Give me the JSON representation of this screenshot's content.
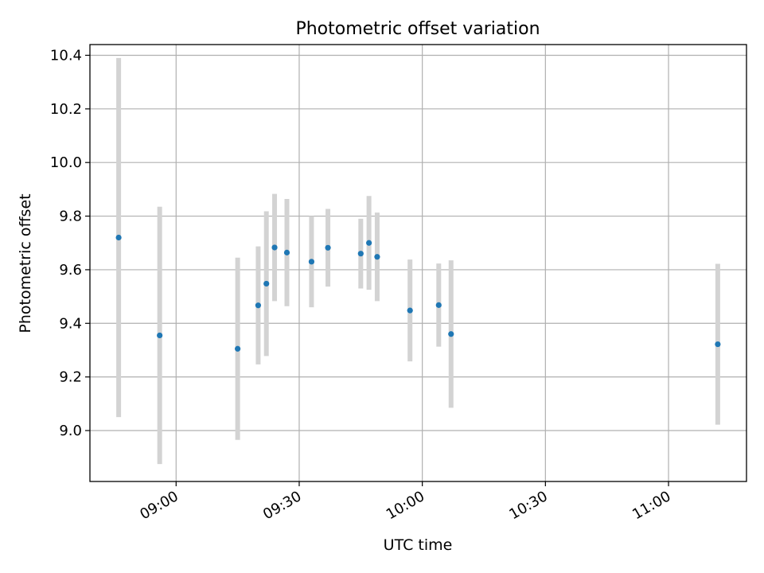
{
  "chart_data": {
    "type": "scatter",
    "title": "Photometric offset variation",
    "xlabel": "UTC time",
    "ylabel": "Photometric offset",
    "xlim": [
      "08:39",
      "11:19"
    ],
    "ylim": [
      8.81,
      10.44
    ],
    "x_ticks": [
      "09:00",
      "09:30",
      "10:00",
      "10:30",
      "11:00"
    ],
    "y_ticks": [
      9.0,
      9.2,
      9.4,
      9.6,
      9.8,
      10.0,
      10.2,
      10.4
    ],
    "y_tick_labels": [
      "9.0",
      "9.2",
      "9.4",
      "9.6",
      "9.8",
      "10.0",
      "10.2",
      "10.4"
    ],
    "grid": true,
    "x_tick_rotation": 30,
    "marker_color": "#1f77b4",
    "errorbar_color": "#d3d3d3",
    "series": [
      {
        "x": [
          "08:46",
          "08:56",
          "09:15",
          "09:20",
          "09:22",
          "09:24",
          "09:27",
          "09:33",
          "09:37",
          "09:45",
          "09:47",
          "09:49",
          "09:57",
          "10:04",
          "10:07",
          "11:12"
        ],
        "y": [
          9.72,
          9.355,
          9.305,
          9.467,
          9.548,
          9.683,
          9.664,
          9.63,
          9.682,
          9.66,
          9.7,
          9.648,
          9.448,
          9.468,
          9.36,
          9.322
        ],
        "yerr": [
          0.67,
          0.48,
          0.34,
          0.22,
          0.27,
          0.2,
          0.2,
          0.17,
          0.145,
          0.13,
          0.175,
          0.165,
          0.19,
          0.155,
          0.275,
          0.3
        ]
      }
    ]
  }
}
